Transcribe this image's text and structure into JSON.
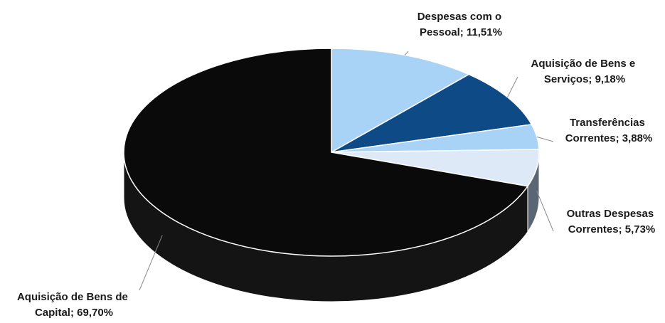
{
  "chart_data": {
    "type": "pie",
    "style": "3d",
    "start_angle_deg": -90,
    "direction": "clockwise",
    "slices": [
      {
        "label_line1": "Despesas com o",
        "label_line2": "Pessoal; 11,51%",
        "value": 11.51,
        "color": "#a9d2f7",
        "side_color": "#7fa9cc"
      },
      {
        "label_line1": "Aquisição de Bens e",
        "label_line2": "Serviços; 9,18%",
        "value": 9.18,
        "color": "#0e4a86",
        "side_color": "#0a325c"
      },
      {
        "label_line1": "Transferências",
        "label_line2": "Correntes; 3,88%",
        "value": 3.88,
        "color": "#a9d2f7",
        "side_color": "#7fa9cc"
      },
      {
        "label_line1": "Outras Despesas",
        "label_line2": "Correntes; 5,73%",
        "value": 5.73,
        "color": "#dde9f6",
        "side_color": "#5b6675"
      },
      {
        "label_line1": "Aquisição de Bens de",
        "label_line2": "Capital; 69,70%",
        "value": 69.7,
        "color": "#0a0a0a",
        "side_color": "#141414"
      }
    ]
  }
}
